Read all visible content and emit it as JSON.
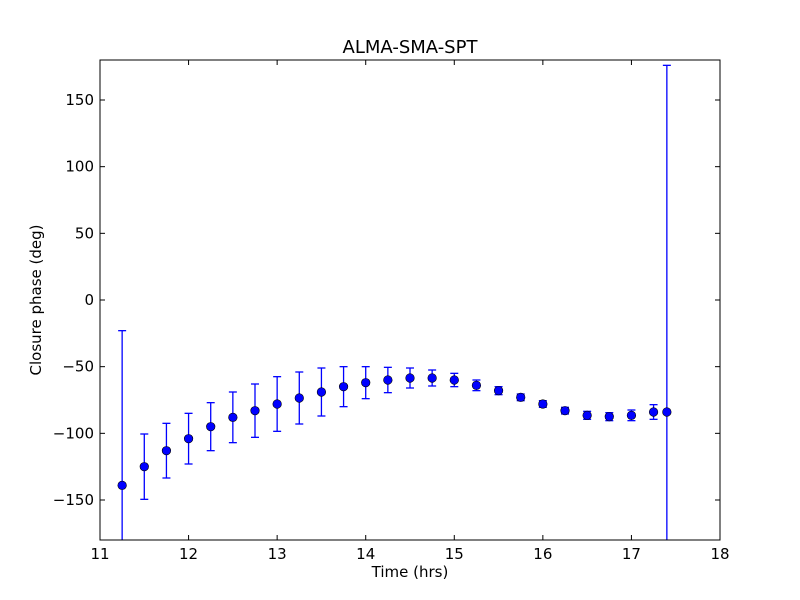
{
  "chart_data": {
    "type": "scatter",
    "title": "ALMA-SMA-SPT",
    "xlabel": "Time (hrs)",
    "ylabel": "Closure phase (deg)",
    "xlim": [
      11,
      18
    ],
    "ylim": [
      -180,
      180
    ],
    "xticks": [
      11,
      12,
      13,
      14,
      15,
      16,
      17,
      18
    ],
    "xtick_labels": [
      "11",
      "12",
      "13",
      "14",
      "15",
      "16",
      "17",
      "18"
    ],
    "yticks": [
      150,
      100,
      50,
      0,
      -50,
      -100,
      -150
    ],
    "ytick_labels": [
      "150",
      "100",
      "50",
      "0",
      "−50",
      "−100",
      "−150"
    ],
    "grid": false,
    "series": [
      {
        "name": "ALMA-SMA-SPT",
        "color": "#0000ff",
        "marker": "circle",
        "x": [
          11.25,
          11.5,
          11.75,
          12.0,
          12.25,
          12.5,
          12.75,
          13.0,
          13.25,
          13.5,
          13.75,
          14.0,
          14.25,
          14.5,
          14.75,
          15.0,
          15.25,
          15.5,
          15.75,
          16.0,
          16.25,
          16.5,
          16.75,
          17.0,
          17.25,
          17.4
        ],
        "y": [
          -139,
          -125,
          -113,
          -104,
          -95,
          -88,
          -83,
          -78,
          -73.5,
          -69,
          -65,
          -62,
          -60,
          -58.5,
          -58.5,
          -60,
          -64,
          -68,
          -73,
          -78,
          -83,
          -86.5,
          -87.5,
          -86.5,
          -84,
          -84
        ],
        "err": [
          116,
          24.5,
          20.5,
          19,
          18,
          19,
          20,
          20.5,
          19.5,
          18,
          15,
          12,
          9.5,
          7.5,
          6,
          5,
          4,
          3,
          2.5,
          2.5,
          2.5,
          3,
          3,
          4,
          5.5,
          260
        ]
      }
    ]
  }
}
